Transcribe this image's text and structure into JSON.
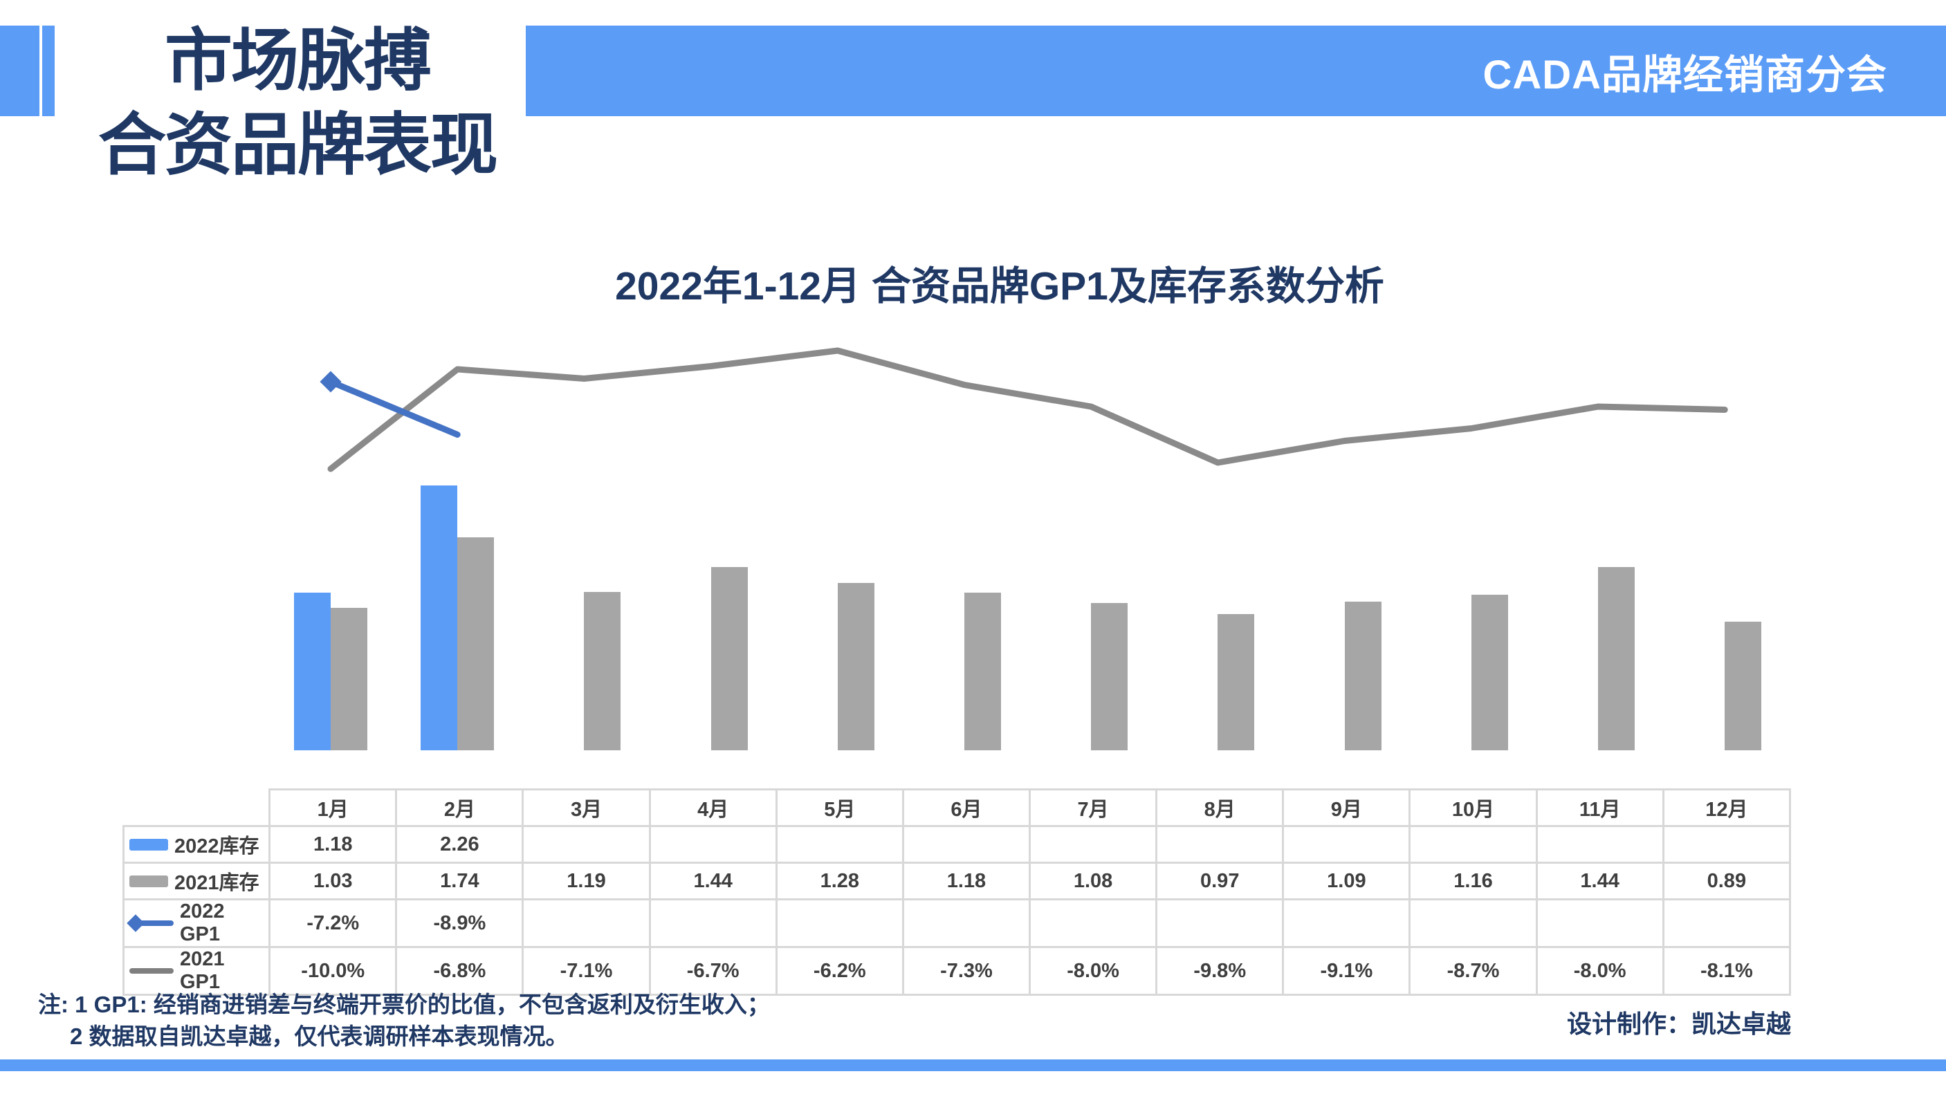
{
  "header": {
    "title_line1": "市场脉搏",
    "title_line2": "合资品牌表现",
    "banner": "CADA品牌经销商分会"
  },
  "chart_data": {
    "type": "combo bar+line",
    "title": "2022年1-12月 合资品牌GP1及库存系数分析",
    "categories": [
      "1月",
      "2月",
      "3月",
      "4月",
      "5月",
      "6月",
      "7月",
      "8月",
      "9月",
      "10月",
      "11月",
      "12月"
    ],
    "gridlines": false,
    "axes_visible": false,
    "legend_position": "left-of-table-rows",
    "series": [
      {
        "key": "inv-2022",
        "name": "2022库存",
        "chart": "bar",
        "color": "#5B9CF7",
        "values": [
          1.18,
          2.26,
          null,
          null,
          null,
          null,
          null,
          null,
          null,
          null,
          null,
          null
        ]
      },
      {
        "key": "inv-2021",
        "name": "2021库存",
        "chart": "bar",
        "color": "#A6A6A6",
        "values": [
          1.03,
          1.74,
          1.19,
          1.44,
          1.28,
          1.18,
          1.08,
          0.97,
          1.09,
          1.16,
          1.44,
          0.89
        ]
      },
      {
        "key": "gp1-2022",
        "name": "2022 GP1",
        "chart": "line",
        "unit": "%",
        "color": "#4472C4",
        "marker": "diamond",
        "values": [
          -7.2,
          -8.9,
          null,
          null,
          null,
          null,
          null,
          null,
          null,
          null,
          null,
          null
        ]
      },
      {
        "key": "gp1-2021",
        "name": "2021 GP1",
        "chart": "line",
        "unit": "%",
        "color": "#8A8A8A",
        "marker": "none",
        "values": [
          -10.0,
          -6.8,
          -7.1,
          -6.7,
          -6.2,
          -7.3,
          -8.0,
          -9.8,
          -9.1,
          -8.7,
          -8.0,
          -8.1
        ]
      }
    ]
  },
  "table": {
    "corner_label": "",
    "columns": [
      "1月",
      "2月",
      "3月",
      "4月",
      "5月",
      "6月",
      "7月",
      "8月",
      "9月",
      "10月",
      "11月",
      "12月"
    ],
    "rows": [
      {
        "label": "2022库存",
        "icon": "bar-blue",
        "cells": [
          "1.18",
          "2.26",
          "",
          "",
          "",
          "",
          "",
          "",
          "",
          "",
          "",
          ""
        ]
      },
      {
        "label": "2021库存",
        "icon": "bar-gray",
        "cells": [
          "1.03",
          "1.74",
          "1.19",
          "1.44",
          "1.28",
          "1.18",
          "1.08",
          "0.97",
          "1.09",
          "1.16",
          "1.44",
          "0.89"
        ]
      },
      {
        "label": "2022 GP1",
        "icon": "line-diamond-blue",
        "cells": [
          "-7.2%",
          "-8.9%",
          "",
          "",
          "",
          "",
          "",
          "",
          "",
          "",
          "",
          ""
        ]
      },
      {
        "label": "2021 GP1",
        "icon": "line-gray",
        "cells": [
          "-10.0%",
          "-6.8%",
          "-7.1%",
          "-6.7%",
          "-6.2%",
          "-7.3%",
          "-8.0%",
          "-9.8%",
          "-9.1%",
          "-8.7%",
          "-8.0%",
          "-8.1%"
        ]
      }
    ]
  },
  "footer": {
    "note_line1": "注: 1  GP1: 经销商进销差与终端开票价的比值，不包含返利及衍生收入；",
    "note_line2": "2 数据取自凯达卓越，仅代表调研样本表现情况。",
    "credit": "设计制作：凯达卓越"
  }
}
